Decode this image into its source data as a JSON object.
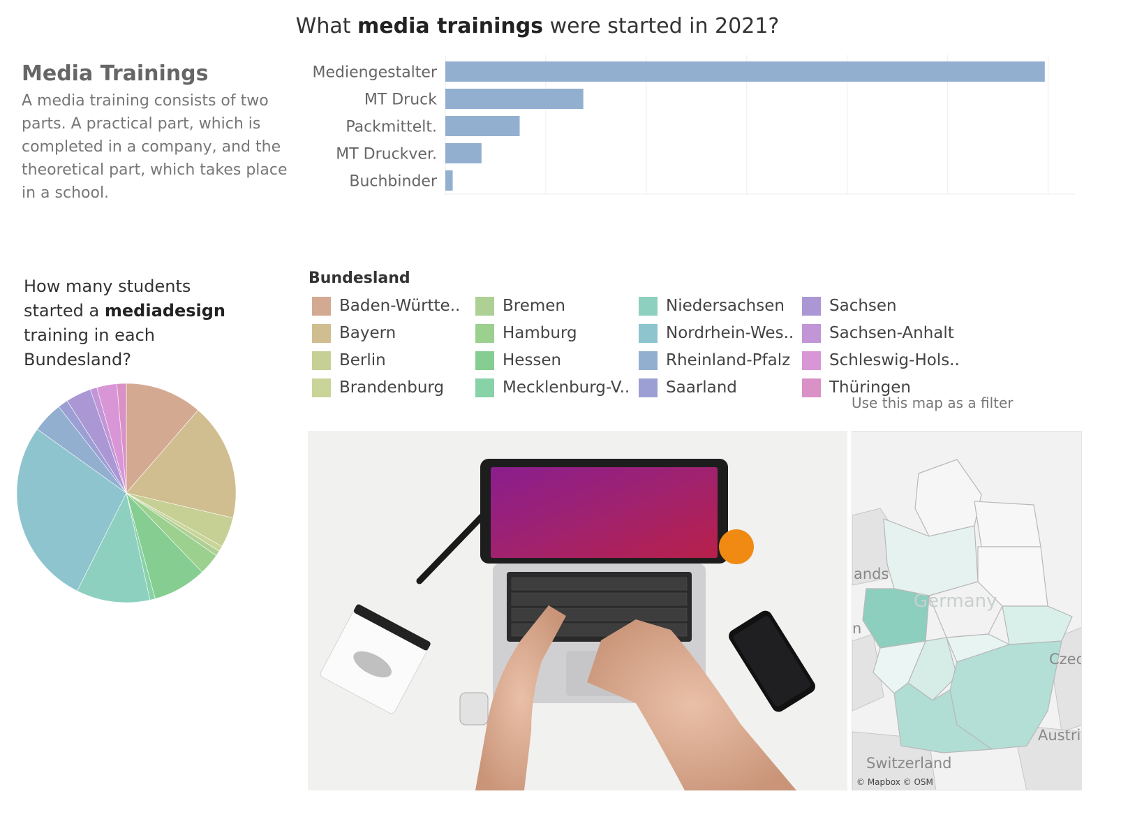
{
  "header": {
    "title_pre": "What ",
    "title_bold": "media trainings",
    "title_post": " were started in 2021?"
  },
  "intro": {
    "title": "Media Trainings",
    "text": "A media training consists of two parts. A practical part, which is completed in a company, and the theoretical part, which takes place in a  school."
  },
  "pie_question": {
    "line_pre": "How many students started a ",
    "bold": "mediadesign",
    "line_post": " training in each Bundesland?"
  },
  "legend": {
    "title": "Bundesland",
    "items": [
      {
        "label": "Baden-Württe..",
        "color": "#d4a992"
      },
      {
        "label": "Bayern",
        "color": "#d0bd90"
      },
      {
        "label": "Berlin",
        "color": "#c6d095"
      },
      {
        "label": "Brandenburg",
        "color": "#c9d499"
      },
      {
        "label": "Bremen",
        "color": "#aed094"
      },
      {
        "label": "Hamburg",
        "color": "#9bd08f"
      },
      {
        "label": "Hessen",
        "color": "#86cd92"
      },
      {
        "label": "Mecklenburg-V..",
        "color": "#88d2a8"
      },
      {
        "label": "Niedersachsen",
        "color": "#8ed0c0"
      },
      {
        "label": "Nordrhein-Wes..",
        "color": "#8dc4cd"
      },
      {
        "label": "Rheinland-Pfalz",
        "color": "#92afd0"
      },
      {
        "label": "Saarland",
        "color": "#9c9fd3"
      },
      {
        "label": "Sachsen",
        "color": "#ab97d4"
      },
      {
        "label": "Sachsen-Anhalt",
        "color": "#c195d6"
      },
      {
        "label": "Schleswig-Hols..",
        "color": "#d996d6"
      },
      {
        "label": "Thüringen",
        "color": "#d991c6"
      }
    ]
  },
  "map": {
    "caption": "Use this map as a filter",
    "labels": {
      "netherlands": "ands",
      "germany": "Germany",
      "czech": "Czec",
      "austria": "Austri",
      "switzerland": "Switzerland",
      "n": "n"
    },
    "attribution": "© Mapbox © OSM"
  },
  "chart_data": [
    {
      "type": "bar",
      "orientation": "horizontal",
      "title": "What media trainings were started in 2021?",
      "categories": [
        "Mediengestalter",
        "MT Druck",
        "Packmittelt.",
        "MT Druckver.",
        "Buchbinder"
      ],
      "values": [
        1790,
        412,
        222,
        108,
        22
      ],
      "xlim": [
        0,
        1880
      ],
      "color": "#92afd0",
      "grid": true
    },
    {
      "type": "pie",
      "title": "How many students started a mediadesign training in each Bundesland?",
      "categories": [
        "Baden-Württemberg",
        "Bayern",
        "Berlin",
        "Brandenburg",
        "Bremen",
        "Hamburg",
        "Hessen",
        "Mecklenburg-Vorpommern",
        "Niedersachsen",
        "Nordrhein-Westfalen",
        "Rheinland-Pfalz",
        "Saarland",
        "Sachsen",
        "Sachsen-Anhalt",
        "Schleswig-Holstein",
        "Thüringen"
      ],
      "values": [
        11.5,
        17.5,
        4.5,
        0.8,
        0.8,
        3.2,
        8.0,
        0.8,
        11.0,
        27.8,
        4.6,
        1.5,
        3.8,
        1.0,
        3.0,
        1.4
      ],
      "start_angle_deg": 0,
      "direction": "clockwise"
    }
  ]
}
